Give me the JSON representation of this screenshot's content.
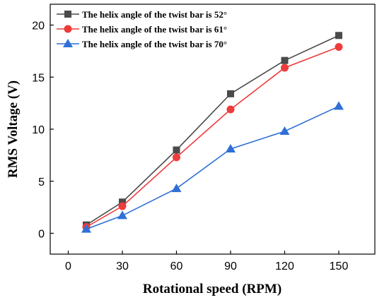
{
  "chart_data": {
    "type": "line",
    "x": [
      10,
      30,
      60,
      90,
      120,
      150
    ],
    "xticks": [
      0,
      30,
      60,
      90,
      120,
      150
    ],
    "yticks": [
      0,
      5,
      10,
      15,
      20
    ],
    "xlim": [
      -10,
      170
    ],
    "ylim": [
      -2,
      22
    ],
    "xlabel": "Rotational speed (RPM)",
    "ylabel": "RMS Voltage (V)",
    "grid": false,
    "legend_position": "top-left",
    "series": [
      {
        "name": "The helix angle of the twist bar is 52°",
        "color": "#4a4a4a",
        "marker": "square",
        "values": [
          0.8,
          3.0,
          8.0,
          13.4,
          16.6,
          19.0
        ]
      },
      {
        "name": "The helix angle of the twist bar is 61°",
        "color": "#ee3b3b",
        "marker": "circle",
        "values": [
          0.6,
          2.6,
          7.3,
          11.9,
          15.9,
          17.9
        ]
      },
      {
        "name": "The helix angle of the twist bar is 70°",
        "color": "#2f6fd6",
        "marker": "triangle",
        "values": [
          0.4,
          1.7,
          4.3,
          8.1,
          9.8,
          12.2
        ]
      }
    ]
  }
}
